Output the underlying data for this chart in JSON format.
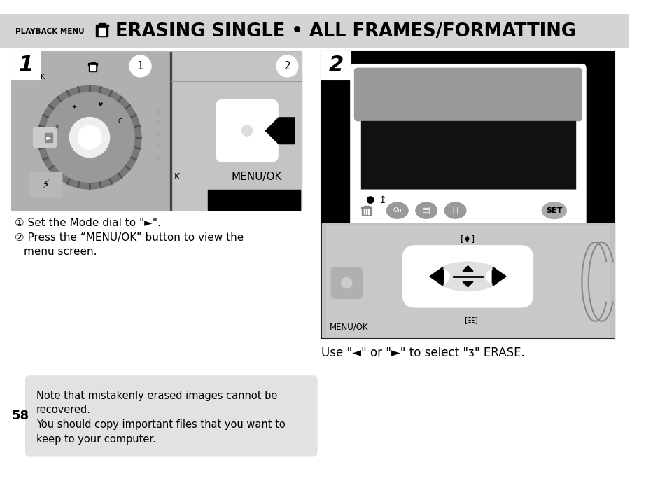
{
  "white": "#ffffff",
  "black": "#000000",
  "dark_gray": "#444444",
  "medium_gray": "#888888",
  "light_gray": "#c8c8c8",
  "panel_gray": "#b8b8b8",
  "header_bg": "#d4d4d4",
  "note_bg": "#e4e4e4",
  "screen_bg": "#111111",
  "camera_body": "#c0c0c0",
  "header_border_color": "#000000",
  "playback_menu_label": "PLAYBACK MENU",
  "title": "ERASING SINGLE • ALL FRAMES/FORMATTING",
  "step1_num": "1",
  "step2_num": "2",
  "instr1": "① Set the Mode dial to \"►\".",
  "instr2a": "② Press the “MENU/OK” button to view the",
  "instr2b": "   menu screen.",
  "use_text": "Use \"◄\" or \"►\" to select \"⛽\" ERASE.",
  "note_line1": "Note that mistakenly erased images cannot be",
  "note_line2": "recovered.",
  "note_line3": "You should copy important files that you want to",
  "note_line4": "keep to your computer.",
  "page_num": "58",
  "fig_w": 9.54,
  "fig_h": 6.87,
  "dpi": 100
}
